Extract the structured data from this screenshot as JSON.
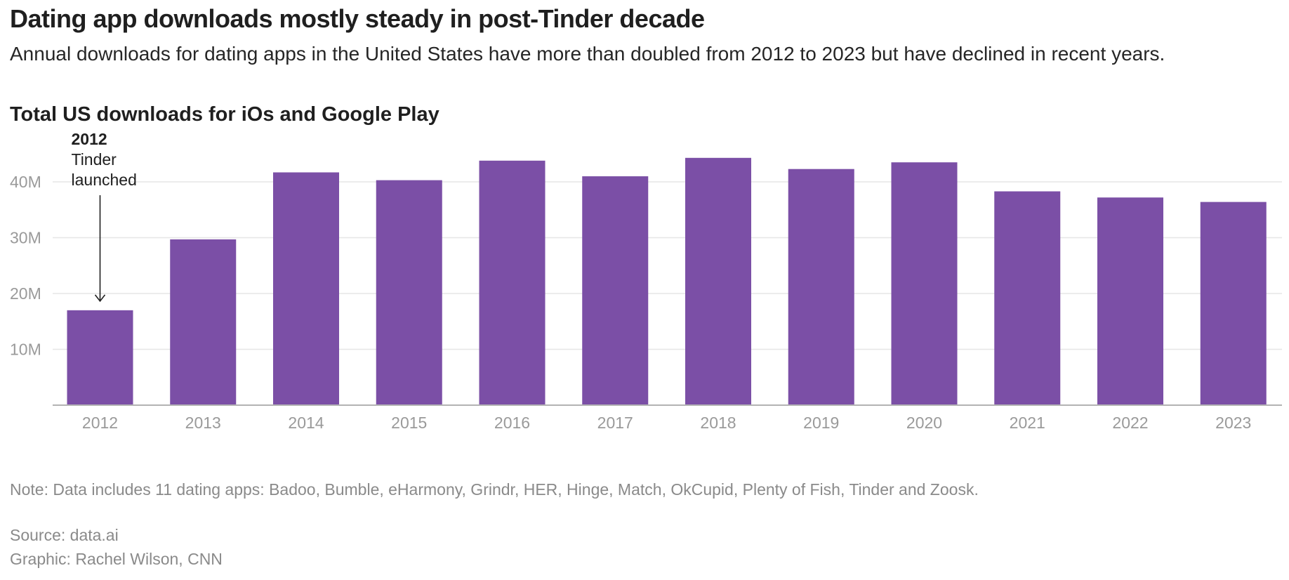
{
  "headline": "Dating app downloads mostly steady in post-Tinder decade",
  "subheadline": "Annual downloads for dating apps in the United States have more than doubled from 2012 to 2023 but have declined in recent years.",
  "footer": {
    "note": "Note: Data includes 11 dating apps: Badoo, Bumble, eHarmony, Grindr, HER, Hinge, Match, OkCupid, Plenty of Fish, Tinder and Zoosk.",
    "source": "Source: data.ai",
    "credit": "Graphic: Rachel Wilson, CNN"
  },
  "colors": {
    "bar": "#7b4fa6",
    "gridline": "#e6e6e6",
    "axis": "#b3b3b3",
    "tick_text": "#9a9a9a"
  },
  "chart_data": {
    "type": "bar",
    "title": "Total US downloads for iOs and Google Play",
    "xlabel": "",
    "ylabel": "",
    "categories": [
      "2012",
      "2013",
      "2014",
      "2015",
      "2016",
      "2017",
      "2018",
      "2019",
      "2020",
      "2021",
      "2022",
      "2023"
    ],
    "values": [
      17,
      29.7,
      41.7,
      40.3,
      43.8,
      41,
      44.3,
      42.3,
      43.5,
      38.3,
      37.2,
      36.4
    ],
    "value_unit": "millions",
    "ylim": [
      0,
      45
    ],
    "yticks": [
      {
        "value": 10,
        "label": "10M"
      },
      {
        "value": 20,
        "label": "20M"
      },
      {
        "value": 30,
        "label": "30M"
      },
      {
        "value": 40,
        "label": "40M"
      }
    ],
    "grid": true,
    "legend": "none",
    "annotation": {
      "category": "2012",
      "year": "2012",
      "lines": [
        "Tinder",
        "launched"
      ]
    }
  }
}
